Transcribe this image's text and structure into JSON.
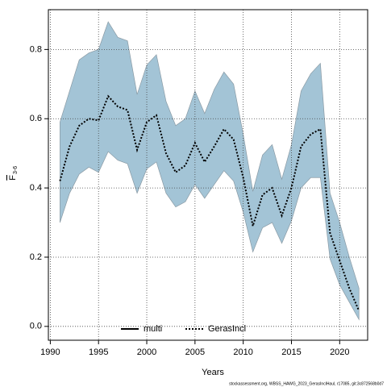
{
  "chart_data": {
    "type": "line",
    "xlabel": "Years",
    "ylabel": "F",
    "ylabel_sub": "3-6",
    "footnote": "stockassessment.org, WBSS_HAWG_2023_GerasInclHaul, r17085, git:3c872568b0d7",
    "x": [
      1991,
      1992,
      1993,
      1994,
      1995,
      1996,
      1997,
      1998,
      1999,
      2000,
      2001,
      2002,
      2003,
      2004,
      2005,
      2006,
      2007,
      2008,
      2009,
      2010,
      2011,
      2012,
      2013,
      2014,
      2015,
      2016,
      2017,
      2018,
      2019,
      2020,
      2021,
      2022
    ],
    "series": [
      {
        "name": "multi",
        "color": "#000000",
        "linestyle": "solid"
      },
      {
        "name": "GerasIncl",
        "color": "#000000",
        "linestyle": "dotted",
        "band_color": "#a3c4d6",
        "values": [
          0.42,
          0.52,
          0.58,
          0.6,
          0.595,
          0.665,
          0.635,
          0.625,
          0.51,
          0.59,
          0.61,
          0.5,
          0.445,
          0.465,
          0.53,
          0.475,
          0.52,
          0.57,
          0.54,
          0.43,
          0.29,
          0.38,
          0.4,
          0.32,
          0.4,
          0.52,
          0.555,
          0.57,
          0.27,
          0.19,
          0.11,
          0.045
        ],
        "upper": [
          0.59,
          0.68,
          0.77,
          0.79,
          0.8,
          0.88,
          0.835,
          0.825,
          0.67,
          0.755,
          0.785,
          0.65,
          0.58,
          0.6,
          0.68,
          0.615,
          0.685,
          0.735,
          0.7,
          0.555,
          0.39,
          0.495,
          0.525,
          0.425,
          0.525,
          0.68,
          0.73,
          0.76,
          0.385,
          0.3,
          0.2,
          0.11
        ],
        "lower": [
          0.3,
          0.385,
          0.44,
          0.46,
          0.445,
          0.505,
          0.48,
          0.47,
          0.385,
          0.455,
          0.475,
          0.385,
          0.345,
          0.36,
          0.41,
          0.37,
          0.41,
          0.45,
          0.42,
          0.33,
          0.215,
          0.285,
          0.3,
          0.24,
          0.305,
          0.4,
          0.43,
          0.43,
          0.195,
          0.12,
          0.07,
          0.02
        ]
      }
    ],
    "xlim": [
      1989.8,
      2022.9
    ],
    "xticks": [
      1990,
      1995,
      2000,
      2005,
      2010,
      2015,
      2020
    ],
    "ylim": [
      -0.04,
      0.915
    ],
    "yticks": [
      {
        "value": 0,
        "label": "0.0"
      },
      0.2,
      0.4,
      0.6,
      0.8
    ],
    "grid": true,
    "legend": "bottom"
  }
}
